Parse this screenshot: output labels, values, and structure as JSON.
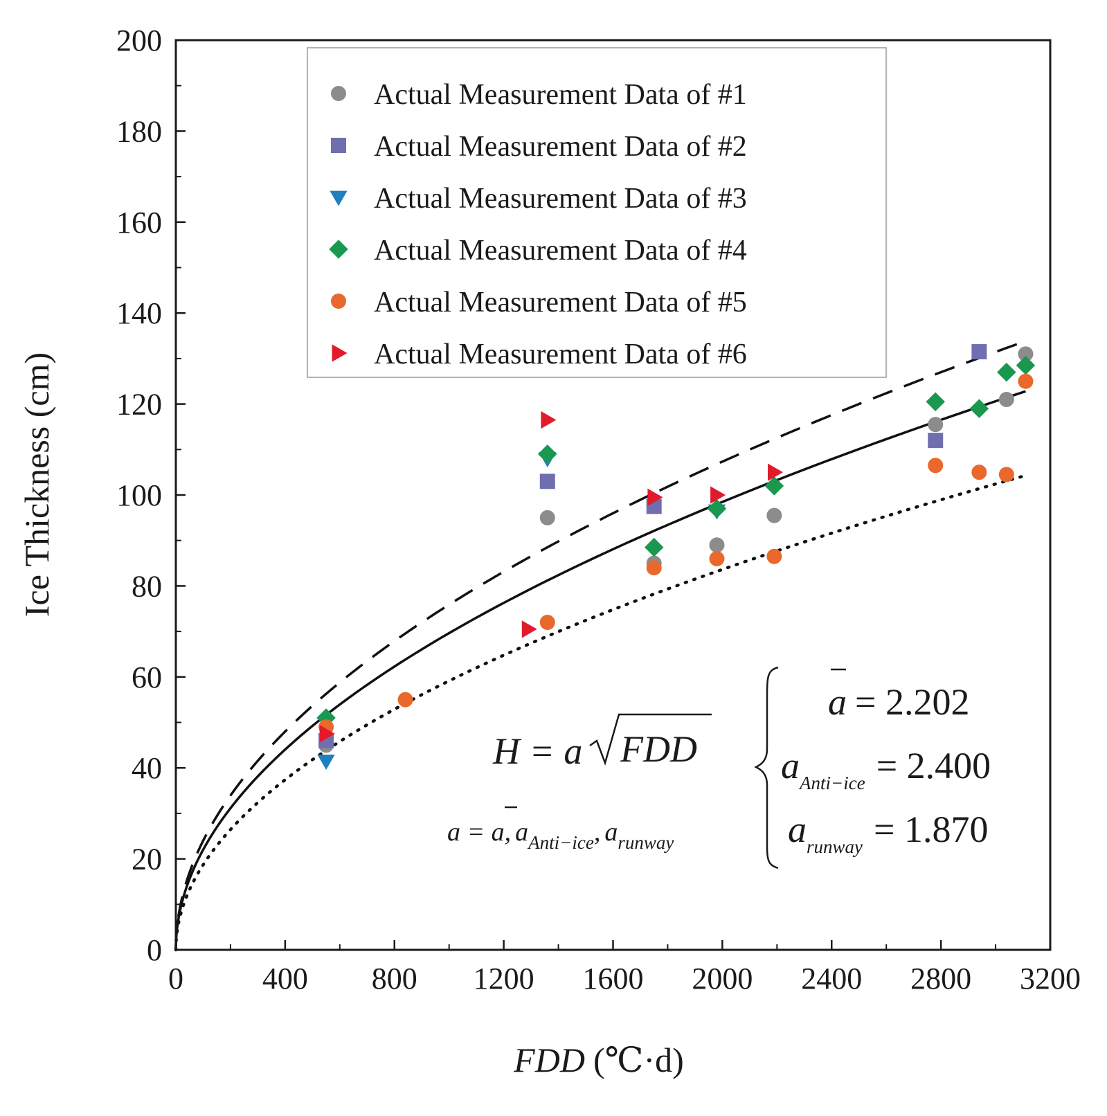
{
  "chart_data": {
    "type": "scatter",
    "xlabel_italic": "FDD",
    "xlabel_unit": "(℃·d)",
    "ylabel": "Ice Thickness (cm)",
    "xlim": [
      0,
      3200
    ],
    "ylim": [
      0,
      200
    ],
    "xticks": [
      0,
      400,
      800,
      1200,
      1600,
      2000,
      2400,
      2800,
      3200
    ],
    "yticks": [
      0,
      20,
      40,
      60,
      80,
      100,
      120,
      140,
      160,
      180,
      200
    ],
    "legend_position": "top-center",
    "series": [
      {
        "name": "Actual Measurement Data of #1",
        "marker": "circle",
        "color": "#8c8c8c",
        "x": [
          550,
          1360,
          1750,
          1980,
          2190,
          2780,
          3040,
          3110
        ],
        "y": [
          45,
          95,
          85,
          89,
          95.5,
          115.5,
          121,
          131
        ]
      },
      {
        "name": "Actual Measurement Data of #2",
        "marker": "square",
        "color": "#6f6fb0",
        "x": [
          550,
          1360,
          1750,
          2780,
          2940
        ],
        "y": [
          46,
          103,
          97.5,
          112,
          131.5
        ]
      },
      {
        "name": "Actual Measurement Data of #3",
        "marker": "triangle-down",
        "color": "#1f7fbf",
        "x": [
          550,
          1360,
          1980
        ],
        "y": [
          41.5,
          108,
          96.5
        ]
      },
      {
        "name": "Actual Measurement Data of #4",
        "marker": "diamond",
        "color": "#1a9850",
        "x": [
          550,
          1360,
          1750,
          1980,
          2190,
          2780,
          2940,
          3040,
          3110
        ],
        "y": [
          51,
          109,
          88.5,
          97,
          102,
          120.5,
          119,
          127,
          128.5
        ]
      },
      {
        "name": "Actual Measurement Data of #5",
        "marker": "circle",
        "color": "#e8692b",
        "x": [
          550,
          840,
          1360,
          1750,
          1980,
          2190,
          2780,
          2940,
          3040,
          3110
        ],
        "y": [
          49,
          55,
          72,
          84,
          86,
          86.5,
          106.5,
          105,
          104.5,
          125
        ]
      },
      {
        "name": "Actual Measurement Data of #6",
        "marker": "triangle-right",
        "color": "#e31a2c",
        "x": [
          550,
          1290,
          1360,
          1750,
          1980,
          2190
        ],
        "y": [
          47.5,
          70.5,
          116.5,
          99.5,
          100,
          105
        ]
      }
    ],
    "curves": [
      {
        "name": "mean",
        "coefficient": 2.202,
        "style": "solid",
        "x_max": 3110
      },
      {
        "name": "anti-ice",
        "coefficient": 2.4,
        "style": "dashed",
        "x_max": 3110
      },
      {
        "name": "runway",
        "coefficient": 1.87,
        "style": "dotted",
        "x_max": 3110
      }
    ],
    "equation": {
      "main_lhs": "H = a",
      "main_radicand": "FDD",
      "cases_prefix": "a = ",
      "cases_a": "a",
      "cases_sep": ",",
      "cases_sub_anti": "Anti−ice",
      "cases_sub_runway": "runway",
      "mean_symbol": "a",
      "mean_value": "= 2.202",
      "anti_symbol": "a",
      "anti_sub": "Anti−ice",
      "anti_value": "= 2.400",
      "runway_symbol": "a",
      "runway_sub": "runway",
      "runway_value": "= 1.870"
    }
  }
}
